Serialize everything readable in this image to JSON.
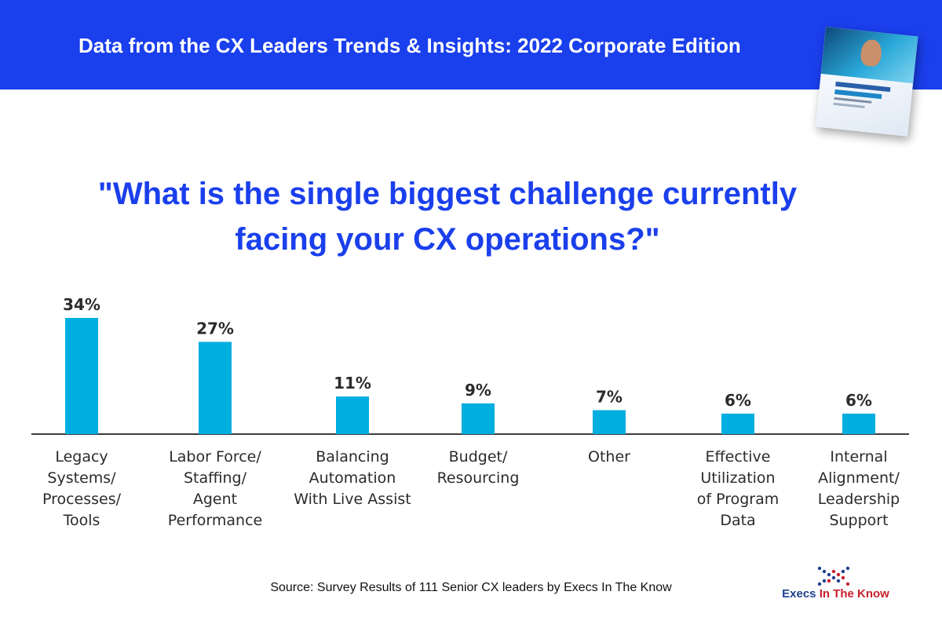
{
  "banner": {
    "title": "Data from the CX Leaders Trends & Insights: 2022 Corporate Edition"
  },
  "question": {
    "line1": "\"What is the single biggest challenge currently",
    "line2": "facing your CX operations?\""
  },
  "chart_data": {
    "type": "bar",
    "categories": [
      [
        "Legacy",
        "Systems/",
        "Processes/",
        "Tools"
      ],
      [
        "Labor Force/",
        "Staffing/",
        "Agent",
        "Performance"
      ],
      [
        "Balancing",
        "Automation",
        "With Live Assist"
      ],
      [
        "Budget/",
        "Resourcing"
      ],
      [
        "Other"
      ],
      [
        "Effective",
        "Utilization",
        "of Program",
        "Data"
      ],
      [
        "Internal",
        "Alignment/",
        "Leadership",
        "Support"
      ]
    ],
    "values": [
      34,
      27,
      11,
      9,
      7,
      6,
      6
    ],
    "value_labels": [
      "34%",
      "27%",
      "11%",
      "9%",
      "7%",
      "6%",
      "6%"
    ],
    "title": "\"What is the single biggest challenge currently facing your CX operations?\"",
    "xlabel": "",
    "ylabel": "",
    "ylim": [
      0,
      34
    ],
    "grid": false,
    "bar_color": "#00aee0"
  },
  "source": "Source: Survey Results of 111 Senior CX leaders by Execs In The Know",
  "logo": {
    "word1": "Execs",
    "word2": "In The Know"
  },
  "colors": {
    "banner": "#1a3fec",
    "question": "#1a3fec",
    "bar": "#00aee0"
  },
  "cover": {
    "icon": "report-cover-icon"
  }
}
